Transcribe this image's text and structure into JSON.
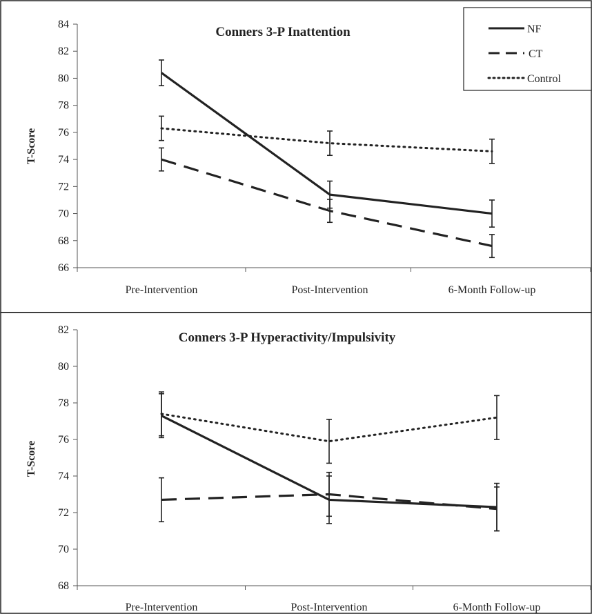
{
  "chart_data": [
    {
      "type": "line",
      "title": "Conners 3-P Inattention",
      "xlabel": "",
      "ylabel": "T-Score",
      "categories": [
        "Pre-Intervention",
        "Post-Intervention",
        "6-Month Follow-up"
      ],
      "ylim": [
        66,
        84
      ],
      "yticks": [
        66,
        68,
        70,
        72,
        74,
        76,
        78,
        80,
        82,
        84
      ],
      "grid": false,
      "legend": "top-right",
      "series": [
        {
          "name": "NF",
          "style": "solid",
          "values": [
            80.4,
            71.4,
            70.0
          ],
          "errors": [
            0.95,
            1.0,
            1.0
          ]
        },
        {
          "name": "CT",
          "style": "dashed",
          "values": [
            74.0,
            70.2,
            67.6
          ],
          "errors": [
            0.85,
            0.85,
            0.85
          ]
        },
        {
          "name": "Control",
          "style": "dotted",
          "values": [
            76.3,
            75.2,
            74.6
          ],
          "errors": [
            0.9,
            0.9,
            0.9
          ]
        }
      ]
    },
    {
      "type": "line",
      "title": "Conners 3-P Hyperactivity/Impulsivity",
      "xlabel": "",
      "ylabel": "T-Score",
      "categories": [
        "Pre-Intervention",
        "Post-Intervention",
        "6-Month Follow-up"
      ],
      "ylim": [
        68,
        82
      ],
      "yticks": [
        68,
        70,
        72,
        74,
        76,
        78,
        80,
        82
      ],
      "grid": false,
      "legend": "none",
      "series": [
        {
          "name": "NF",
          "style": "solid",
          "values": [
            77.3,
            72.7,
            72.3
          ],
          "errors": [
            1.2,
            1.3,
            1.3
          ]
        },
        {
          "name": "CT",
          "style": "dashed",
          "values": [
            72.7,
            73.0,
            72.2
          ],
          "errors": [
            1.2,
            1.2,
            1.2
          ]
        },
        {
          "name": "Control",
          "style": "dotted",
          "values": [
            77.4,
            75.9,
            77.2
          ],
          "errors": [
            1.2,
            1.2,
            1.2
          ]
        }
      ]
    }
  ]
}
